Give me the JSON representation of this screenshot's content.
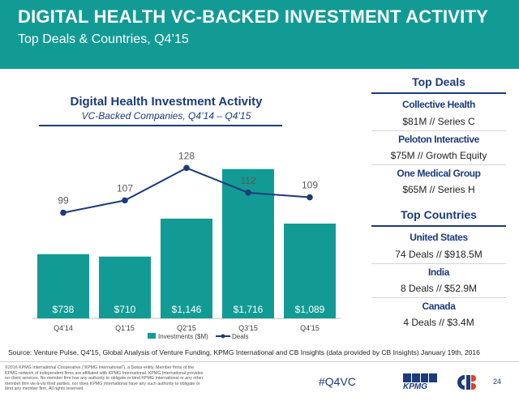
{
  "header": {
    "title": "DIGITAL HEALTH VC-BACKED INVESTMENT ACTIVITY",
    "subtitle": "Top Deals & Countries, Q4’15"
  },
  "chart_data": {
    "type": "bar",
    "title": "Digital Health Investment Activity",
    "subtitle": "VC-Backed Companies, Q4’14 – Q4’15",
    "categories": [
      "Q4'14",
      "Q1'15",
      "Q2'15",
      "Q3'15",
      "Q4'15"
    ],
    "series": [
      {
        "name": "Investments ($M)",
        "type": "bar",
        "values": [
          738,
          710,
          1146,
          1716,
          1089
        ],
        "labels": [
          "$738",
          "$710",
          "$1,146",
          "$1,716",
          "$1,089"
        ],
        "color": "#129b94"
      },
      {
        "name": "Deals",
        "type": "line",
        "values": [
          99,
          107,
          128,
          112,
          109
        ],
        "color": "#1c3b7a"
      }
    ],
    "bar_axis_range": [
      0,
      1750
    ],
    "line_axis_range": [
      50,
      135
    ],
    "grid": false,
    "legend": "bottom"
  },
  "top_deals": {
    "heading": "Top Deals",
    "items": [
      {
        "name": "Collective Health",
        "detail": "$81M // Series C"
      },
      {
        "name": "Peloton Interactive",
        "detail": "$75M // Growth Equity"
      },
      {
        "name": "One Medical Group",
        "detail": "$65M // Series H"
      }
    ]
  },
  "top_countries": {
    "heading": "Top Countries",
    "items": [
      {
        "name": "United States",
        "detail": "74 Deals // $918.5M"
      },
      {
        "name": "India",
        "detail": "8 Deals // $52.9M"
      },
      {
        "name": "Canada",
        "detail": "4 Deals // $3.4M"
      }
    ]
  },
  "footer": {
    "source": "Source: Venture Pulse, Q4'15, Global Analysis of Venture Funding, KPMG International and CB Insights (data provided by CB Insights) January 19th, 2016",
    "legal": "©2016 KPMG International Cooperative (“KPMG International”), a Swiss entity. Member firms of the KPMG network of independent firms are affiliated with KPMG International. KPMG International provides no client services. No member firm has any authority to obligate or bind KPMG International or any other member firm vis-à-vis third parties, nor does KPMG International have any such authority to obligate or bind any member firm. All rights reserved.",
    "hashtag": "#Q4VC",
    "kpmg_logo": "KPMG",
    "page_number": "24"
  },
  "colors": {
    "header_bg": "#129b94",
    "accent_navy": "#1c3b7a",
    "bar": "#129b94"
  }
}
